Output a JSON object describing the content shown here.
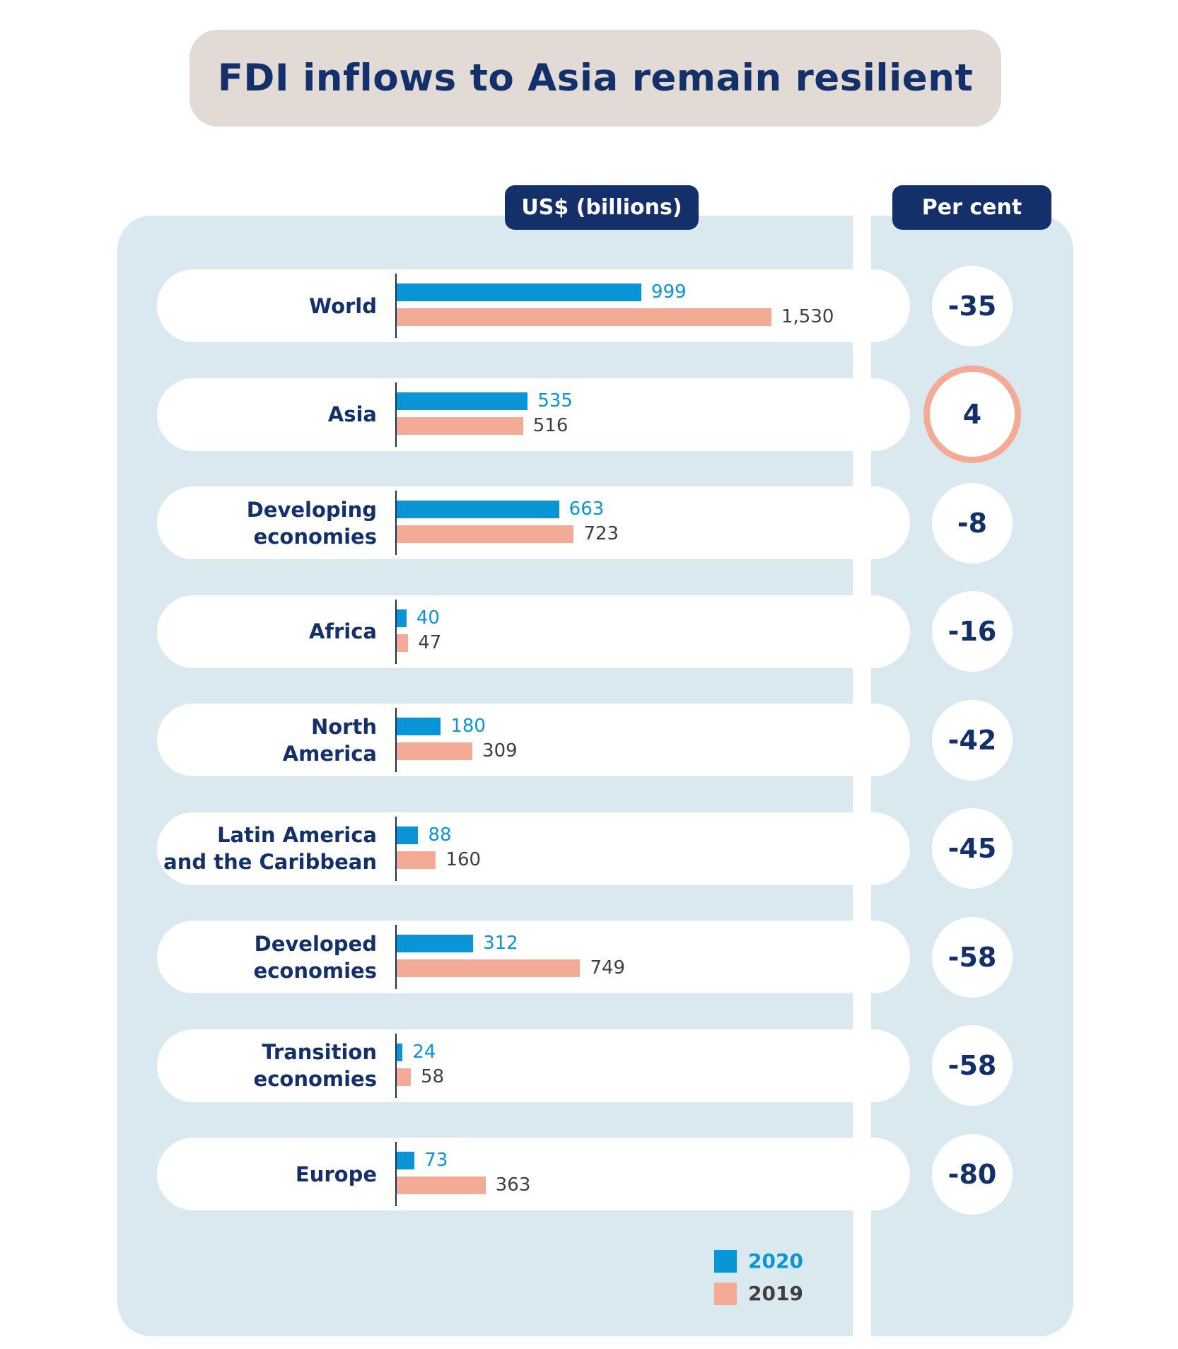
{
  "chart_data": {
    "type": "bar",
    "title": "FDI inflows to Asia remain resilient",
    "value_header": "US$ (billions)",
    "percent_header": "Per cent",
    "categories": [
      "World",
      "Asia",
      "Developing economies",
      "Africa",
      "North America",
      "Latin America and the Caribbean",
      "Developed economies",
      "Transition economies",
      "Europe"
    ],
    "category_lines": [
      [
        "World"
      ],
      [
        "Asia"
      ],
      [
        "Developing",
        "economies"
      ],
      [
        "Africa"
      ],
      [
        "North",
        "America"
      ],
      [
        "Latin America",
        "and the Caribbean"
      ],
      [
        "Developed",
        "economies"
      ],
      [
        "Transition",
        "economies"
      ],
      [
        "Europe"
      ]
    ],
    "series": [
      {
        "name": "2020",
        "color": "#0a96d6",
        "values": [
          999,
          535,
          663,
          40,
          180,
          88,
          312,
          24,
          73
        ],
        "labels": [
          "999",
          "535",
          "663",
          "40",
          "180",
          "88",
          "312",
          "24",
          "73"
        ]
      },
      {
        "name": "2019",
        "color": "#f4ab96",
        "values": [
          1530,
          516,
          723,
          47,
          309,
          160,
          749,
          58,
          363
        ],
        "labels": [
          "1,530",
          "516",
          "723",
          "47",
          "309",
          "160",
          "749",
          "58",
          "363"
        ]
      }
    ],
    "percent_change": [
      "-35",
      "4",
      "-8",
      "-16",
      "-42",
      "-45",
      "-58",
      "-58",
      "-80"
    ],
    "highlighted_category": "Asia",
    "orientation": "horizontal",
    "xlim": [
      0,
      1530
    ],
    "grid": false,
    "legend_position": "bottom-right"
  }
}
